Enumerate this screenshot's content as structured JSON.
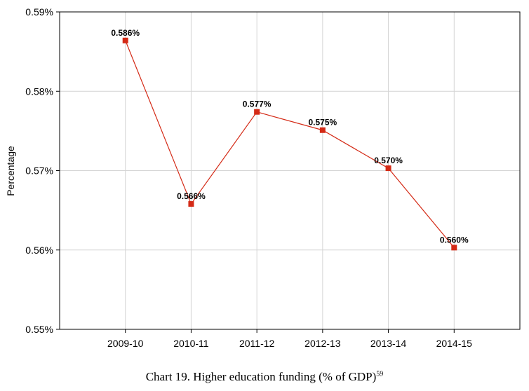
{
  "caption": {
    "text": "Chart 19. Higher education funding (% of GDP)",
    "footnote": "59"
  },
  "chart_data": {
    "type": "line",
    "ylabel": "Percentage",
    "categories": [
      "2009-10",
      "2010-11",
      "2011-12",
      "2012-13",
      "2013-14",
      "2014-15"
    ],
    "series": [
      {
        "values": [
          0.5864,
          0.5658,
          0.5774,
          0.5751,
          0.5703,
          0.5603
        ],
        "labels": [
          "0.586%",
          "0.566%",
          "0.577%",
          "0.575%",
          "0.570%",
          "0.560%"
        ],
        "color": "#d42a16"
      }
    ],
    "ylim": [
      0.55,
      0.59
    ],
    "yticks": [
      0.55,
      0.56,
      0.57,
      0.58,
      0.59
    ],
    "ytick_labels": [
      "0.55%",
      "0.56%",
      "0.57%",
      "0.58%",
      "0.59%"
    ],
    "grid": true,
    "grid_color": "#d4d4d4",
    "legend": "none"
  }
}
